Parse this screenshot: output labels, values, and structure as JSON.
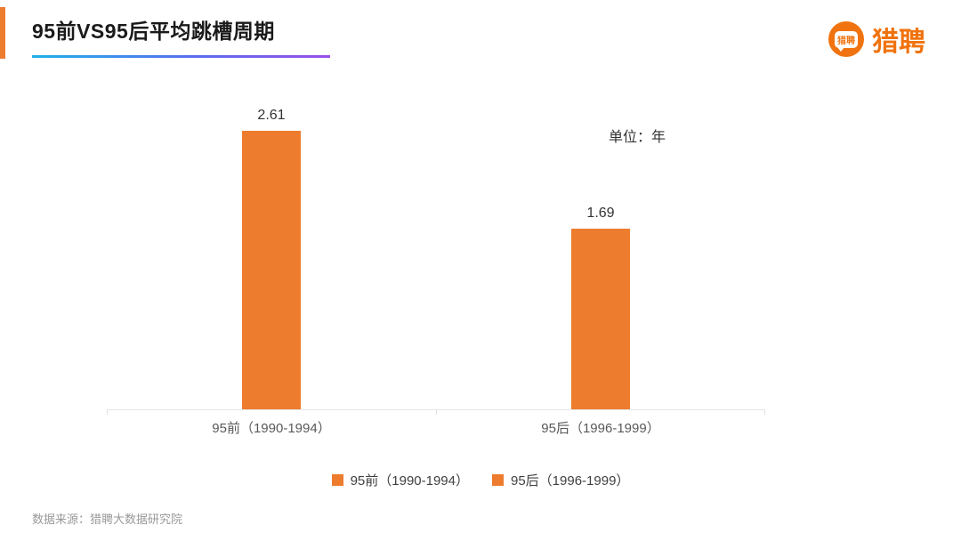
{
  "header": {
    "title": "95前VS95后平均跳槽周期",
    "logo_bubble_text": "猎聘",
    "logo_text": "猎聘"
  },
  "chart_data": {
    "type": "bar",
    "title": "95前VS95后平均跳槽周期",
    "unit_label": "单位：年",
    "categories": [
      "95前（1990-1994）",
      "95后（1996-1999）"
    ],
    "values": [
      2.61,
      1.69
    ],
    "value_labels": [
      "2.61",
      "1.69"
    ],
    "ylim": [
      0,
      3
    ],
    "grid": false,
    "bar_color": "#ED7C2F",
    "legend": [
      "95前（1990-1994）",
      "95后（1996-1999）"
    ],
    "legend_position": "bottom"
  },
  "footer": {
    "source": "数据来源：猎聘大数据研究院"
  },
  "colors": {
    "accent_orange": "#ED7C2F",
    "logo_orange": "#F0730F",
    "underline_gradient_start": "#1FB1E6",
    "underline_gradient_end": "#9A4FE8",
    "axis_line": "#E6E6E6"
  }
}
